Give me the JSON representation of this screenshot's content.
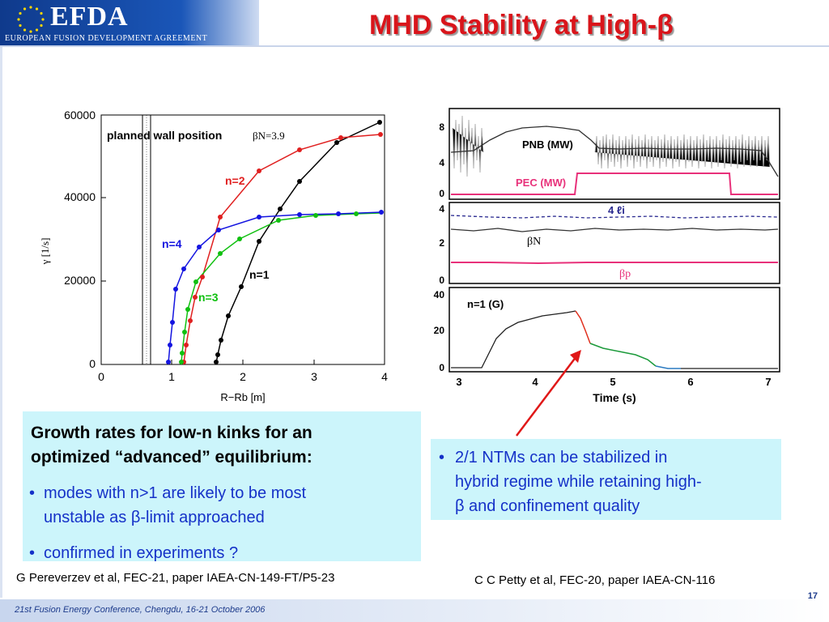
{
  "header": {
    "logo_text": "EFDA",
    "logo_subtitle": "EUROPEAN FUSION DEVELOPMENT AGREEMENT",
    "title": "MHD Stability at High-β"
  },
  "left_chart": {
    "wall_label": "planned wall position",
    "beta_label": "βN=3.9",
    "series": [
      {
        "name": "n=1",
        "color": "#000000"
      },
      {
        "name": "n=2",
        "color": "#e02020"
      },
      {
        "name": "n=3",
        "color": "#10c010"
      },
      {
        "name": "n=4",
        "color": "#1414e0"
      }
    ],
    "ylabel": "γ  [1/s]",
    "xlabel": "R−Rb   [m]",
    "yticks": [
      "0",
      "20000",
      "40000",
      "60000"
    ],
    "xticks": [
      "0",
      "1",
      "2",
      "3",
      "4"
    ]
  },
  "right_plots": {
    "panel1": {
      "labels": [
        "PNB (MW)",
        "PEC (MW)"
      ],
      "yticks": [
        "0",
        "4",
        "8"
      ]
    },
    "panel2": {
      "labels": [
        "4 ℓi",
        "βN",
        "βp"
      ],
      "yticks": [
        "0",
        "2",
        "4"
      ]
    },
    "panel3": {
      "labels": [
        "n=1 (G)"
      ],
      "yticks": [
        "0",
        "20",
        "40"
      ]
    },
    "xticks": [
      "3",
      "4",
      "5",
      "6",
      "7"
    ],
    "xlabel": "Time (s)"
  },
  "note_left": {
    "heading_line1": "Growth rates for low-n kinks for an",
    "heading_line2": "optimized “advanced” equilibrium:",
    "bullet1_line1": "modes with n>1 are likely to be most",
    "bullet1_line2": "unstable as β-limit approached",
    "bullet2": "confirmed in experiments ?",
    "bullet_char": "•"
  },
  "note_right": {
    "line1": "2/1 NTMs can be stabilized in",
    "line2": "hybrid regime while retaining high-",
    "line3": "β and confinement quality",
    "bullet_char": "•"
  },
  "refs": {
    "left": "G Pereverzev et al, FEC-21, paper IAEA-CN-149-FT/P5-23",
    "right": "C C Petty et al, FEC-20, paper IAEA-CN-116"
  },
  "footer": {
    "conference": "21st Fusion Energy Conference, Chengdu, 16-21 October 2006",
    "page": "17"
  },
  "colors": {
    "title": "#d9151b",
    "bullet_text": "#1531c8",
    "note_bg": "#ccf5fb"
  }
}
